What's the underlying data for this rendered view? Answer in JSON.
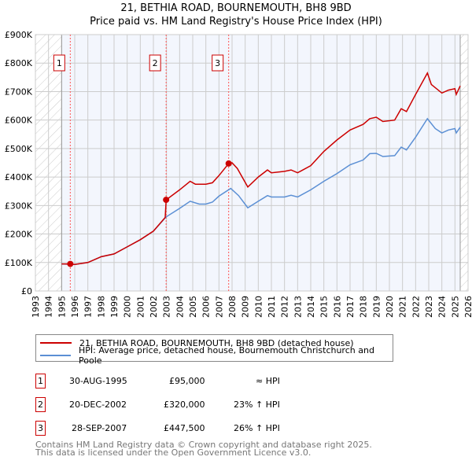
{
  "title_line1": "21, BETHIA ROAD, BOURNEMOUTH, BH8 9BD",
  "title_line2": "Price paid vs. HM Land Registry's House Price Index (HPI)",
  "legend": {
    "property": "21, BETHIA ROAD, BOURNEMOUTH, BH8 9BD (detached house)",
    "hpi": "HPI: Average price, detached house, Bournemouth Christchurch and Poole"
  },
  "colors": {
    "property": "#cc0000",
    "hpi": "#5b8fd4",
    "shade": "#f3f6fd"
  },
  "sales": [
    {
      "num": "1",
      "date": "30-AUG-1995",
      "price": "£95,000",
      "rel": "≈ HPI",
      "x": 1995.66,
      "y": 95
    },
    {
      "num": "2",
      "date": "20-DEC-2002",
      "price": "£320,000",
      "rel": "23% ↑ HPI",
      "x": 2002.97,
      "y": 320
    },
    {
      "num": "3",
      "date": "28-SEP-2007",
      "price": "£447,500",
      "rel": "26% ↑ HPI",
      "x": 2007.74,
      "y": 447.5
    }
  ],
  "footer": {
    "line1": "Contains HM Land Registry data © Crown copyright and database right 2025.",
    "line2": "This data is licensed under the Open Government Licence v3.0."
  },
  "chart_data": {
    "type": "line",
    "title": "Price paid vs. HM Land Registry's House Price Index (HPI)",
    "xlim": [
      1993,
      2026
    ],
    "ylim": [
      0,
      900
    ],
    "data_range": [
      1995,
      2025.4
    ],
    "x_ticks": [
      "1993",
      "1994",
      "1995",
      "1996",
      "1997",
      "1998",
      "1999",
      "2000",
      "2001",
      "2002",
      "2003",
      "2004",
      "2005",
      "2006",
      "2007",
      "2008",
      "2009",
      "2010",
      "2011",
      "2012",
      "2013",
      "2014",
      "2015",
      "2016",
      "2017",
      "2018",
      "2019",
      "2020",
      "2021",
      "2022",
      "2023",
      "2024",
      "2025",
      "2026"
    ],
    "y_ticks": [
      {
        "v": 0,
        "label": "£0"
      },
      {
        "v": 100,
        "label": "£100K"
      },
      {
        "v": 200,
        "label": "£200K"
      },
      {
        "v": 300,
        "label": "£300K"
      },
      {
        "v": 400,
        "label": "£400K"
      },
      {
        "v": 500,
        "label": "£500K"
      },
      {
        "v": 600,
        "label": "£600K"
      },
      {
        "v": 700,
        "label": "£700K"
      },
      {
        "v": 800,
        "label": "£800K"
      },
      {
        "v": 900,
        "label": "£900K"
      }
    ],
    "grid": true,
    "series": [
      {
        "name": "21, BETHIA ROAD, BOURNEMOUTH, BH8 9BD (detached house)",
        "points": [
          [
            1995,
            95
          ],
          [
            1995.66,
            95
          ],
          [
            1996,
            93
          ],
          [
            1997,
            100
          ],
          [
            1998,
            120
          ],
          [
            1999,
            130
          ],
          [
            2000,
            155
          ],
          [
            2001,
            180
          ],
          [
            2002,
            210
          ],
          [
            2002.9,
            258
          ],
          [
            2002.97,
            320
          ],
          [
            2004,
            355
          ],
          [
            2004.8,
            385
          ],
          [
            2005.2,
            375
          ],
          [
            2006,
            375
          ],
          [
            2006.5,
            380
          ],
          [
            2007,
            405
          ],
          [
            2007.74,
            447.5
          ],
          [
            2008,
            450
          ],
          [
            2008.4,
            430
          ],
          [
            2009.2,
            365
          ],
          [
            2010,
            400
          ],
          [
            2010.7,
            425
          ],
          [
            2011,
            415
          ],
          [
            2012,
            420
          ],
          [
            2012.5,
            425
          ],
          [
            2013,
            415
          ],
          [
            2014,
            440
          ],
          [
            2015,
            490
          ],
          [
            2016,
            530
          ],
          [
            2017,
            565
          ],
          [
            2018,
            585
          ],
          [
            2018.5,
            605
          ],
          [
            2019,
            610
          ],
          [
            2019.5,
            595
          ],
          [
            2020.4,
            600
          ],
          [
            2020.9,
            640
          ],
          [
            2021.3,
            630
          ],
          [
            2022,
            690
          ],
          [
            2022.9,
            765
          ],
          [
            2023.2,
            725
          ],
          [
            2024,
            695
          ],
          [
            2024.5,
            705
          ],
          [
            2025,
            710
          ],
          [
            2025.1,
            690
          ],
          [
            2025.4,
            720
          ]
        ]
      },
      {
        "name": "HPI: Average price, detached house, Bournemouth Christchurch and Poole",
        "points": [
          [
            1995,
            95
          ],
          [
            1996,
            93
          ],
          [
            1997,
            100
          ],
          [
            1998,
            120
          ],
          [
            1999,
            130
          ],
          [
            2000,
            155
          ],
          [
            2001,
            180
          ],
          [
            2002,
            210
          ],
          [
            2002.97,
            260
          ],
          [
            2004,
            290
          ],
          [
            2004.8,
            315
          ],
          [
            2005.5,
            305
          ],
          [
            2006,
            305
          ],
          [
            2006.5,
            312
          ],
          [
            2007,
            333
          ],
          [
            2007.9,
            360
          ],
          [
            2008.5,
            335
          ],
          [
            2009.2,
            292
          ],
          [
            2010,
            315
          ],
          [
            2010.7,
            335
          ],
          [
            2011,
            330
          ],
          [
            2012,
            330
          ],
          [
            2012.5,
            336
          ],
          [
            2013,
            330
          ],
          [
            2014,
            355
          ],
          [
            2015,
            385
          ],
          [
            2016,
            412
          ],
          [
            2017,
            443
          ],
          [
            2018,
            460
          ],
          [
            2018.5,
            482
          ],
          [
            2019,
            483
          ],
          [
            2019.5,
            472
          ],
          [
            2020.4,
            475
          ],
          [
            2020.9,
            505
          ],
          [
            2021.3,
            495
          ],
          [
            2022,
            540
          ],
          [
            2022.9,
            605
          ],
          [
            2023.5,
            570
          ],
          [
            2024,
            555
          ],
          [
            2024.5,
            565
          ],
          [
            2025,
            570
          ],
          [
            2025.1,
            555
          ],
          [
            2025.4,
            575
          ]
        ]
      }
    ]
  }
}
